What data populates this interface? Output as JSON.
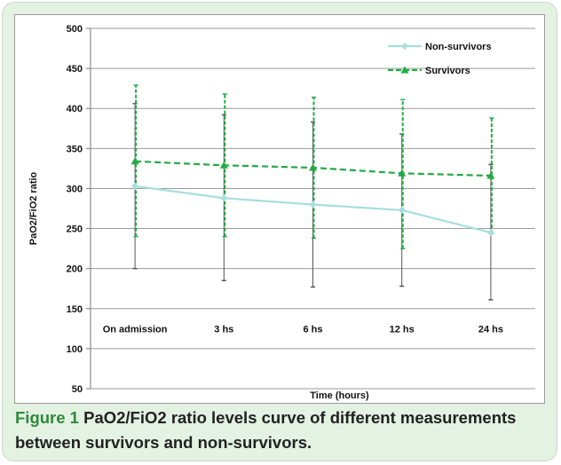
{
  "chart_data": {
    "type": "line",
    "categories": [
      "On admission",
      "3 hs",
      "6 hs",
      "12 hs",
      "24 hs"
    ],
    "xlabel": "Time (hours)",
    "ylabel": "PaO2/FiO2 ratio",
    "ylim": [
      50,
      500
    ],
    "yticks": [
      50,
      100,
      150,
      200,
      250,
      300,
      350,
      400,
      450,
      500
    ],
    "grid": true,
    "legend_position": "top-right",
    "series": [
      {
        "name": "Non-survivors",
        "color": "#a8dede",
        "dash": "solid",
        "marker": "diamond",
        "values": [
          303,
          288,
          280,
          273,
          245
        ],
        "error_low": [
          200,
          185,
          177,
          178,
          161
        ],
        "error_high": [
          406,
          392,
          383,
          368,
          330
        ],
        "errorbar_color": "#555555"
      },
      {
        "name": "Survivors",
        "color": "#22aa44",
        "dash": "dashed",
        "marker": "triangle",
        "values": [
          334,
          329,
          326,
          319,
          316
        ],
        "error_low": [
          240,
          240,
          238,
          225,
          244
        ],
        "error_high": [
          429,
          418,
          414,
          411,
          388
        ],
        "errorbar_color": "#22aa44"
      }
    ]
  },
  "caption": {
    "label": "Figure 1",
    "text": " PaO2/FiO2 ratio levels curve of different measurements between survivors and non-survivors."
  },
  "colors": {
    "frame_background": "#e4f2e3",
    "caption_label": "#2f8a3a"
  }
}
